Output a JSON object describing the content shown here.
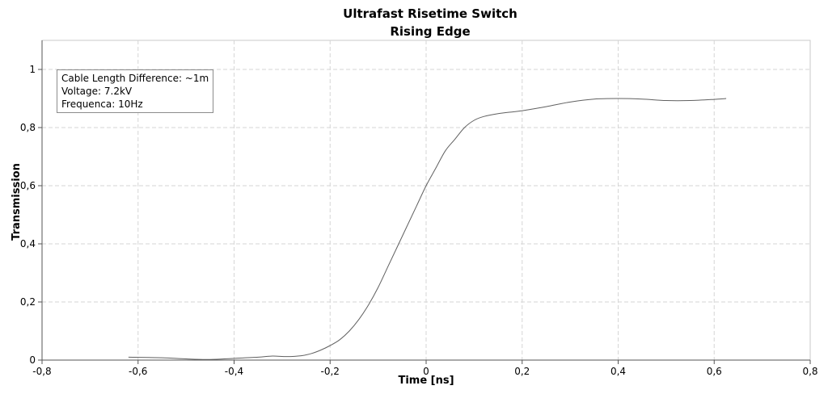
{
  "chart_data": {
    "type": "line",
    "title": "Ultrafast Risetime Switch",
    "subtitle": "Rising Edge",
    "xlabel": "Time [ns]",
    "ylabel": "Transmission",
    "xlim": [
      -0.8,
      0.8
    ],
    "ylim": [
      0,
      1.1
    ],
    "x_ticks": [
      "-0,8",
      "-0,6",
      "-0,4",
      "-0,2",
      "0",
      "0,2",
      "0,4",
      "0,6",
      "0,8"
    ],
    "x_tick_values": [
      -0.8,
      -0.6,
      -0.4,
      -0.2,
      0,
      0.2,
      0.4,
      0.6,
      0.8
    ],
    "y_ticks": [
      "0",
      "0,2",
      "0,4",
      "0,6",
      "0,8",
      "1"
    ],
    "y_tick_values": [
      0,
      0.2,
      0.4,
      0.6,
      0.8,
      1.0
    ],
    "grid": true,
    "annotation": [
      "Cable Length Difference: ~1m",
      "Voltage: 7.2kV",
      "Frequenca: 10Hz"
    ],
    "line_color": "#606060",
    "series": [
      {
        "x": [
          -0.62,
          -0.55,
          -0.5,
          -0.45,
          -0.4,
          -0.35,
          -0.32,
          -0.29,
          -0.26,
          -0.24,
          -0.22,
          -0.2,
          -0.18,
          -0.16,
          -0.14,
          -0.12,
          -0.1,
          -0.08,
          -0.06,
          -0.04,
          -0.02,
          0.0,
          0.02,
          0.04,
          0.06,
          0.08,
          0.1,
          0.12,
          0.15,
          0.2,
          0.25,
          0.3,
          0.35,
          0.4,
          0.45,
          0.5,
          0.55,
          0.6,
          0.625
        ],
        "y": [
          0.01,
          0.008,
          0.004,
          0.002,
          0.006,
          0.01,
          0.014,
          0.012,
          0.015,
          0.022,
          0.034,
          0.05,
          0.07,
          0.1,
          0.14,
          0.19,
          0.25,
          0.32,
          0.39,
          0.46,
          0.53,
          0.6,
          0.66,
          0.72,
          0.76,
          0.8,
          0.825,
          0.838,
          0.848,
          0.858,
          0.872,
          0.888,
          0.898,
          0.9,
          0.898,
          0.893,
          0.893,
          0.897,
          0.9
        ]
      }
    ]
  }
}
